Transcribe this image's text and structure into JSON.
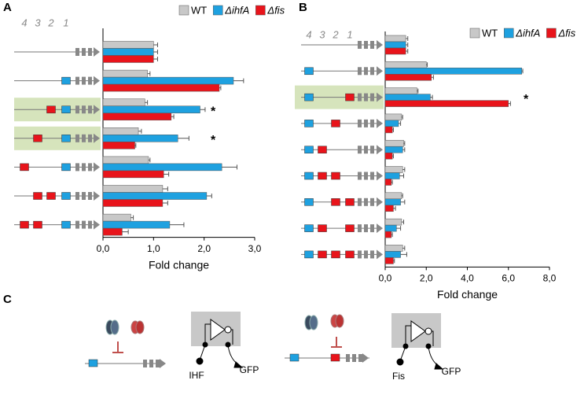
{
  "chart_data": [
    {
      "type": "bar",
      "orientation": "horizontal",
      "panel": "A",
      "xlabel": "Fold change",
      "xlim": [
        0,
        3
      ],
      "xticks": [
        {
          "value": 0,
          "label": "0,0"
        },
        {
          "value": 1,
          "label": "1,0"
        },
        {
          "value": 2,
          "label": "2,0"
        },
        {
          "value": 3,
          "label": "3,0"
        }
      ],
      "site_labels": [
        "4",
        "3",
        "2",
        "1"
      ],
      "series": [
        {
          "name": "WT",
          "color": "#c8c8c8",
          "values": [
            1.0,
            0.88,
            0.83,
            0.7,
            0.9,
            1.18,
            0.55
          ],
          "errors": [
            0.08,
            0.05,
            0.05,
            0.06,
            0.03,
            0.1,
            0.05
          ]
        },
        {
          "name": "ΔihfA",
          "color": "#1ea1e0",
          "values": [
            1.0,
            2.58,
            1.92,
            1.48,
            2.35,
            2.05,
            1.32
          ],
          "errors": [
            0.08,
            0.2,
            0.1,
            0.22,
            0.3,
            0.1,
            0.28
          ]
        },
        {
          "name": "Δfis",
          "color": "#e8141b",
          "values": [
            1.0,
            2.3,
            1.35,
            0.63,
            1.2,
            1.18,
            0.38
          ],
          "errors": [
            0.08,
            0.03,
            0.05,
            0.02,
            0.1,
            0.1,
            0.12
          ]
        }
      ],
      "significance": [
        null,
        null,
        "*",
        "*",
        null,
        null,
        null
      ]
    },
    {
      "type": "bar",
      "orientation": "horizontal",
      "panel": "B",
      "xlabel": "Fold change",
      "xlim": [
        0,
        8
      ],
      "xticks": [
        {
          "value": 0,
          "label": "0,0"
        },
        {
          "value": 2,
          "label": "2,0"
        },
        {
          "value": 4,
          "label": "4,0"
        },
        {
          "value": 6,
          "label": "6,0"
        },
        {
          "value": 8,
          "label": "8,0"
        }
      ],
      "site_labels": [
        "4",
        "3",
        "2",
        "1"
      ],
      "series": [
        {
          "name": "WT",
          "color": "#c8c8c8",
          "values": [
            1.0,
            2.0,
            1.55,
            0.8,
            0.9,
            0.85,
            0.8,
            0.8,
            0.85
          ],
          "errors": [
            0.1,
            0.05,
            0.05,
            0.05,
            0.05,
            0.1,
            0.05,
            0.1,
            0.1
          ]
        },
        {
          "name": "ΔihfA",
          "color": "#1ea1e0",
          "values": [
            1.0,
            6.65,
            2.2,
            0.65,
            0.85,
            0.7,
            0.75,
            0.55,
            0.75
          ],
          "errors": [
            0.1,
            0.05,
            0.1,
            0.1,
            0.1,
            0.2,
            0.2,
            0.2,
            0.3
          ]
        },
        {
          "name": "Δfis",
          "color": "#e8141b",
          "values": [
            1.0,
            2.25,
            6.0,
            0.35,
            0.35,
            0.3,
            0.4,
            0.3,
            0.4
          ],
          "errors": [
            0.1,
            0.1,
            0.1,
            0.05,
            0.05,
            0.05,
            0.1,
            0.05,
            0.05
          ]
        }
      ],
      "significance": [
        null,
        null,
        "*",
        null,
        null,
        null,
        null,
        null,
        null
      ]
    }
  ],
  "panel_c": {
    "panel": "C",
    "left": {
      "input": "IHF",
      "output": "GFP"
    },
    "right": {
      "input": "Fis",
      "output": "GFP"
    }
  }
}
